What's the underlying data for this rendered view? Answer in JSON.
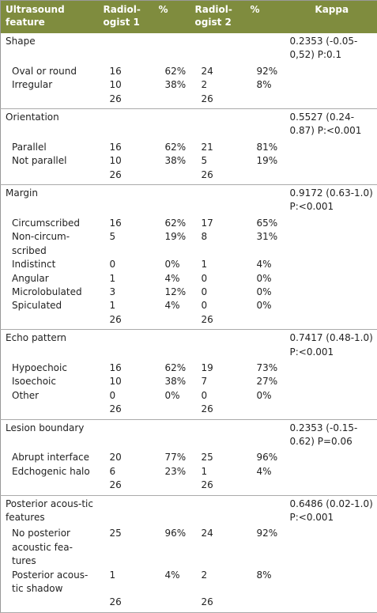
{
  "header": [
    "Ultrasound feature",
    "Radiol-ogist 1",
    "%",
    "Radiol-ogist 2",
    "%",
    "Kappa"
  ],
  "groups": [
    {
      "title": "Shape",
      "kappa": "0.2353 (-0.05-0,52) P:0.1",
      "rows": [
        [
          "Oval or round",
          "16",
          "62%",
          "24",
          "92%"
        ],
        [
          "Irregular",
          "10",
          "38%",
          "2",
          "8%"
        ]
      ],
      "total": [
        "26",
        "26"
      ]
    },
    {
      "title": "Orientation",
      "kappa": "0.5527 (0.24-0.87) P:<0.001",
      "rows": [
        [
          "Parallel",
          "16",
          "62%",
          "21",
          "81%"
        ],
        [
          "Not parallel",
          "10",
          "38%",
          "5",
          "19%"
        ]
      ],
      "total": [
        "26",
        "26"
      ]
    },
    {
      "title": "Margin",
      "kappa": "0.9172 (0.63-1.0) P:<0.001",
      "rows": [
        [
          "Circumscribed",
          "16",
          "62%",
          "17",
          "65%"
        ],
        [
          "Non-circum-scribed",
          "5",
          "19%",
          "8",
          "31%"
        ],
        [
          "Indistinct",
          "0",
          "0%",
          "1",
          "4%"
        ],
        [
          "Angular",
          "1",
          "4%",
          "0",
          "0%"
        ],
        [
          "Microlobulated",
          "3",
          "12%",
          "0",
          "0%"
        ],
        [
          "Spiculated",
          "1",
          "4%",
          "0",
          "0%"
        ]
      ],
      "total": [
        "26",
        "26"
      ]
    },
    {
      "title": "Echo pattern",
      "kappa": "0.7417 (0.48-1.0) P:<0.001",
      "rows": [
        [
          "Hypoechoic",
          "16",
          "62%",
          "19",
          "73%"
        ],
        [
          "Isoechoic",
          "10",
          "38%",
          "7",
          "27%"
        ],
        [
          "Other",
          "0",
          "0%",
          "0",
          "0%"
        ]
      ],
      "total": [
        "26",
        "26"
      ]
    },
    {
      "title": "Lesion boundary",
      "kappa": "0.2353 (-0.15-0.62) P=0.06",
      "rows": [
        [
          "Abrupt interface",
          "20",
          "77%",
          "25",
          "96%"
        ],
        [
          "Edchogenic halo",
          "6",
          "23%",
          "1",
          "4%"
        ]
      ],
      "total": [
        "26",
        "26"
      ]
    },
    {
      "title": "Posterior acous-tic features",
      "kappa": "0.6486 (0.02-1.0) P:<0.001",
      "rows": [
        [
          "No posterior acoustic fea-tures",
          "25",
          "96%",
          "24",
          "92%"
        ],
        [
          "Posterior acous-tic shadow",
          "1",
          "4%",
          "2",
          "8%"
        ]
      ],
      "total": [
        "26",
        "26"
      ]
    }
  ]
}
